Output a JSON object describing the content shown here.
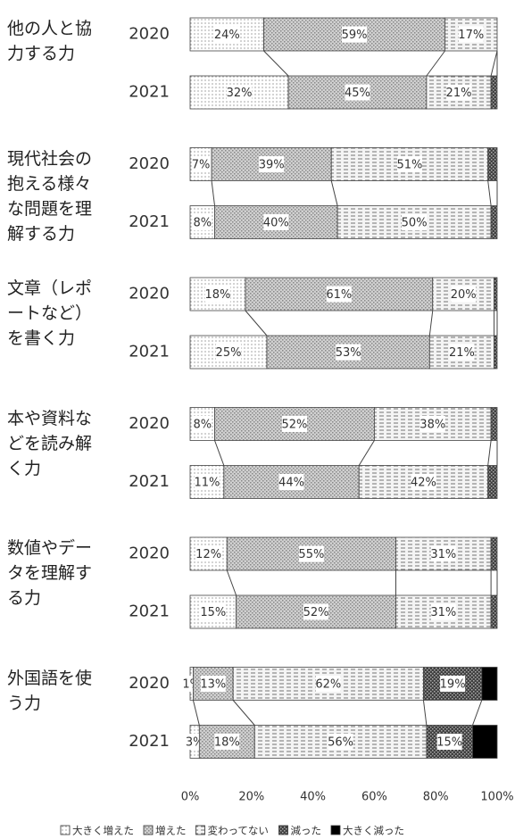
{
  "chart_data": {
    "type": "bar",
    "orientation": "horizontal",
    "stacked": true,
    "categories": [
      "他の人と協力する力",
      "現代社会の抱える様々な問題を理解する力",
      "文章（レポートなど）を書く力",
      "本や資料などを読み解く力",
      "数値やデータを理解する力",
      "外国語を使う力"
    ],
    "years": [
      "2020",
      "2021"
    ],
    "series": [
      {
        "name": "大きく増えた",
        "color": "#ffffff",
        "values": [
          [
            24,
            32
          ],
          [
            7,
            8
          ],
          [
            18,
            25
          ],
          [
            8,
            11
          ],
          [
            12,
            15
          ],
          [
            1,
            3
          ]
        ],
        "value_labels": [
          [
            "24%",
            "32%"
          ],
          [
            "7%",
            "8%"
          ],
          [
            "18%",
            "25%"
          ],
          [
            "8%",
            "11%"
          ],
          [
            "12%",
            "15%"
          ],
          [
            "1%",
            "3%"
          ]
        ]
      },
      {
        "name": "増えた",
        "color": "#d0d0d0",
        "values": [
          [
            59,
            45
          ],
          [
            39,
            40
          ],
          [
            61,
            53
          ],
          [
            52,
            44
          ],
          [
            55,
            52
          ],
          [
            13,
            18
          ]
        ],
        "value_labels": [
          [
            "59%",
            "45%"
          ],
          [
            "39%",
            "40%"
          ],
          [
            "61%",
            "53%"
          ],
          [
            "52%",
            "44%"
          ],
          [
            "55%",
            "52%"
          ],
          [
            "13%",
            "18%"
          ]
        ]
      },
      {
        "name": "変わってない",
        "color": "#f4f4f4",
        "values": [
          [
            17,
            21
          ],
          [
            51,
            50
          ],
          [
            20,
            21
          ],
          [
            38,
            42
          ],
          [
            31,
            31
          ],
          [
            62,
            56
          ]
        ],
        "value_labels": [
          [
            "17%",
            "21%"
          ],
          [
            "51%",
            "50%"
          ],
          [
            "20%",
            "21%"
          ],
          [
            "38%",
            "42%"
          ],
          [
            "31%",
            "31%"
          ],
          [
            "62%",
            "56%"
          ]
        ]
      },
      {
        "name": "減った",
        "color": "#404040",
        "values": [
          [
            0,
            2
          ],
          [
            3,
            2
          ],
          [
            1,
            1
          ],
          [
            2,
            3
          ],
          [
            2,
            2
          ],
          [
            19,
            15
          ]
        ],
        "value_labels": [
          [
            null,
            null
          ],
          [
            null,
            null
          ],
          [
            null,
            null
          ],
          [
            null,
            null
          ],
          [
            null,
            null
          ],
          [
            "19%",
            "15%"
          ]
        ]
      },
      {
        "name": "大きく減った",
        "color": "#000000",
        "values": [
          [
            0,
            0
          ],
          [
            0,
            0
          ],
          [
            0,
            0
          ],
          [
            0,
            0
          ],
          [
            0,
            0
          ],
          [
            5,
            8
          ]
        ],
        "value_labels": [
          [
            null,
            null
          ],
          [
            null,
            null
          ],
          [
            null,
            null
          ],
          [
            null,
            null
          ],
          [
            null,
            null
          ],
          [
            null,
            null
          ]
        ]
      }
    ],
    "xlim": [
      0,
      100
    ],
    "xticks": [
      {
        "value": 0,
        "label": "0%"
      },
      {
        "value": 20,
        "label": "20%"
      },
      {
        "value": 40,
        "label": "40%"
      },
      {
        "value": 60,
        "label": "60%"
      },
      {
        "value": 80,
        "label": "80%"
      },
      {
        "value": 100,
        "label": "100%"
      }
    ],
    "grid": false,
    "legend": "bottom"
  }
}
